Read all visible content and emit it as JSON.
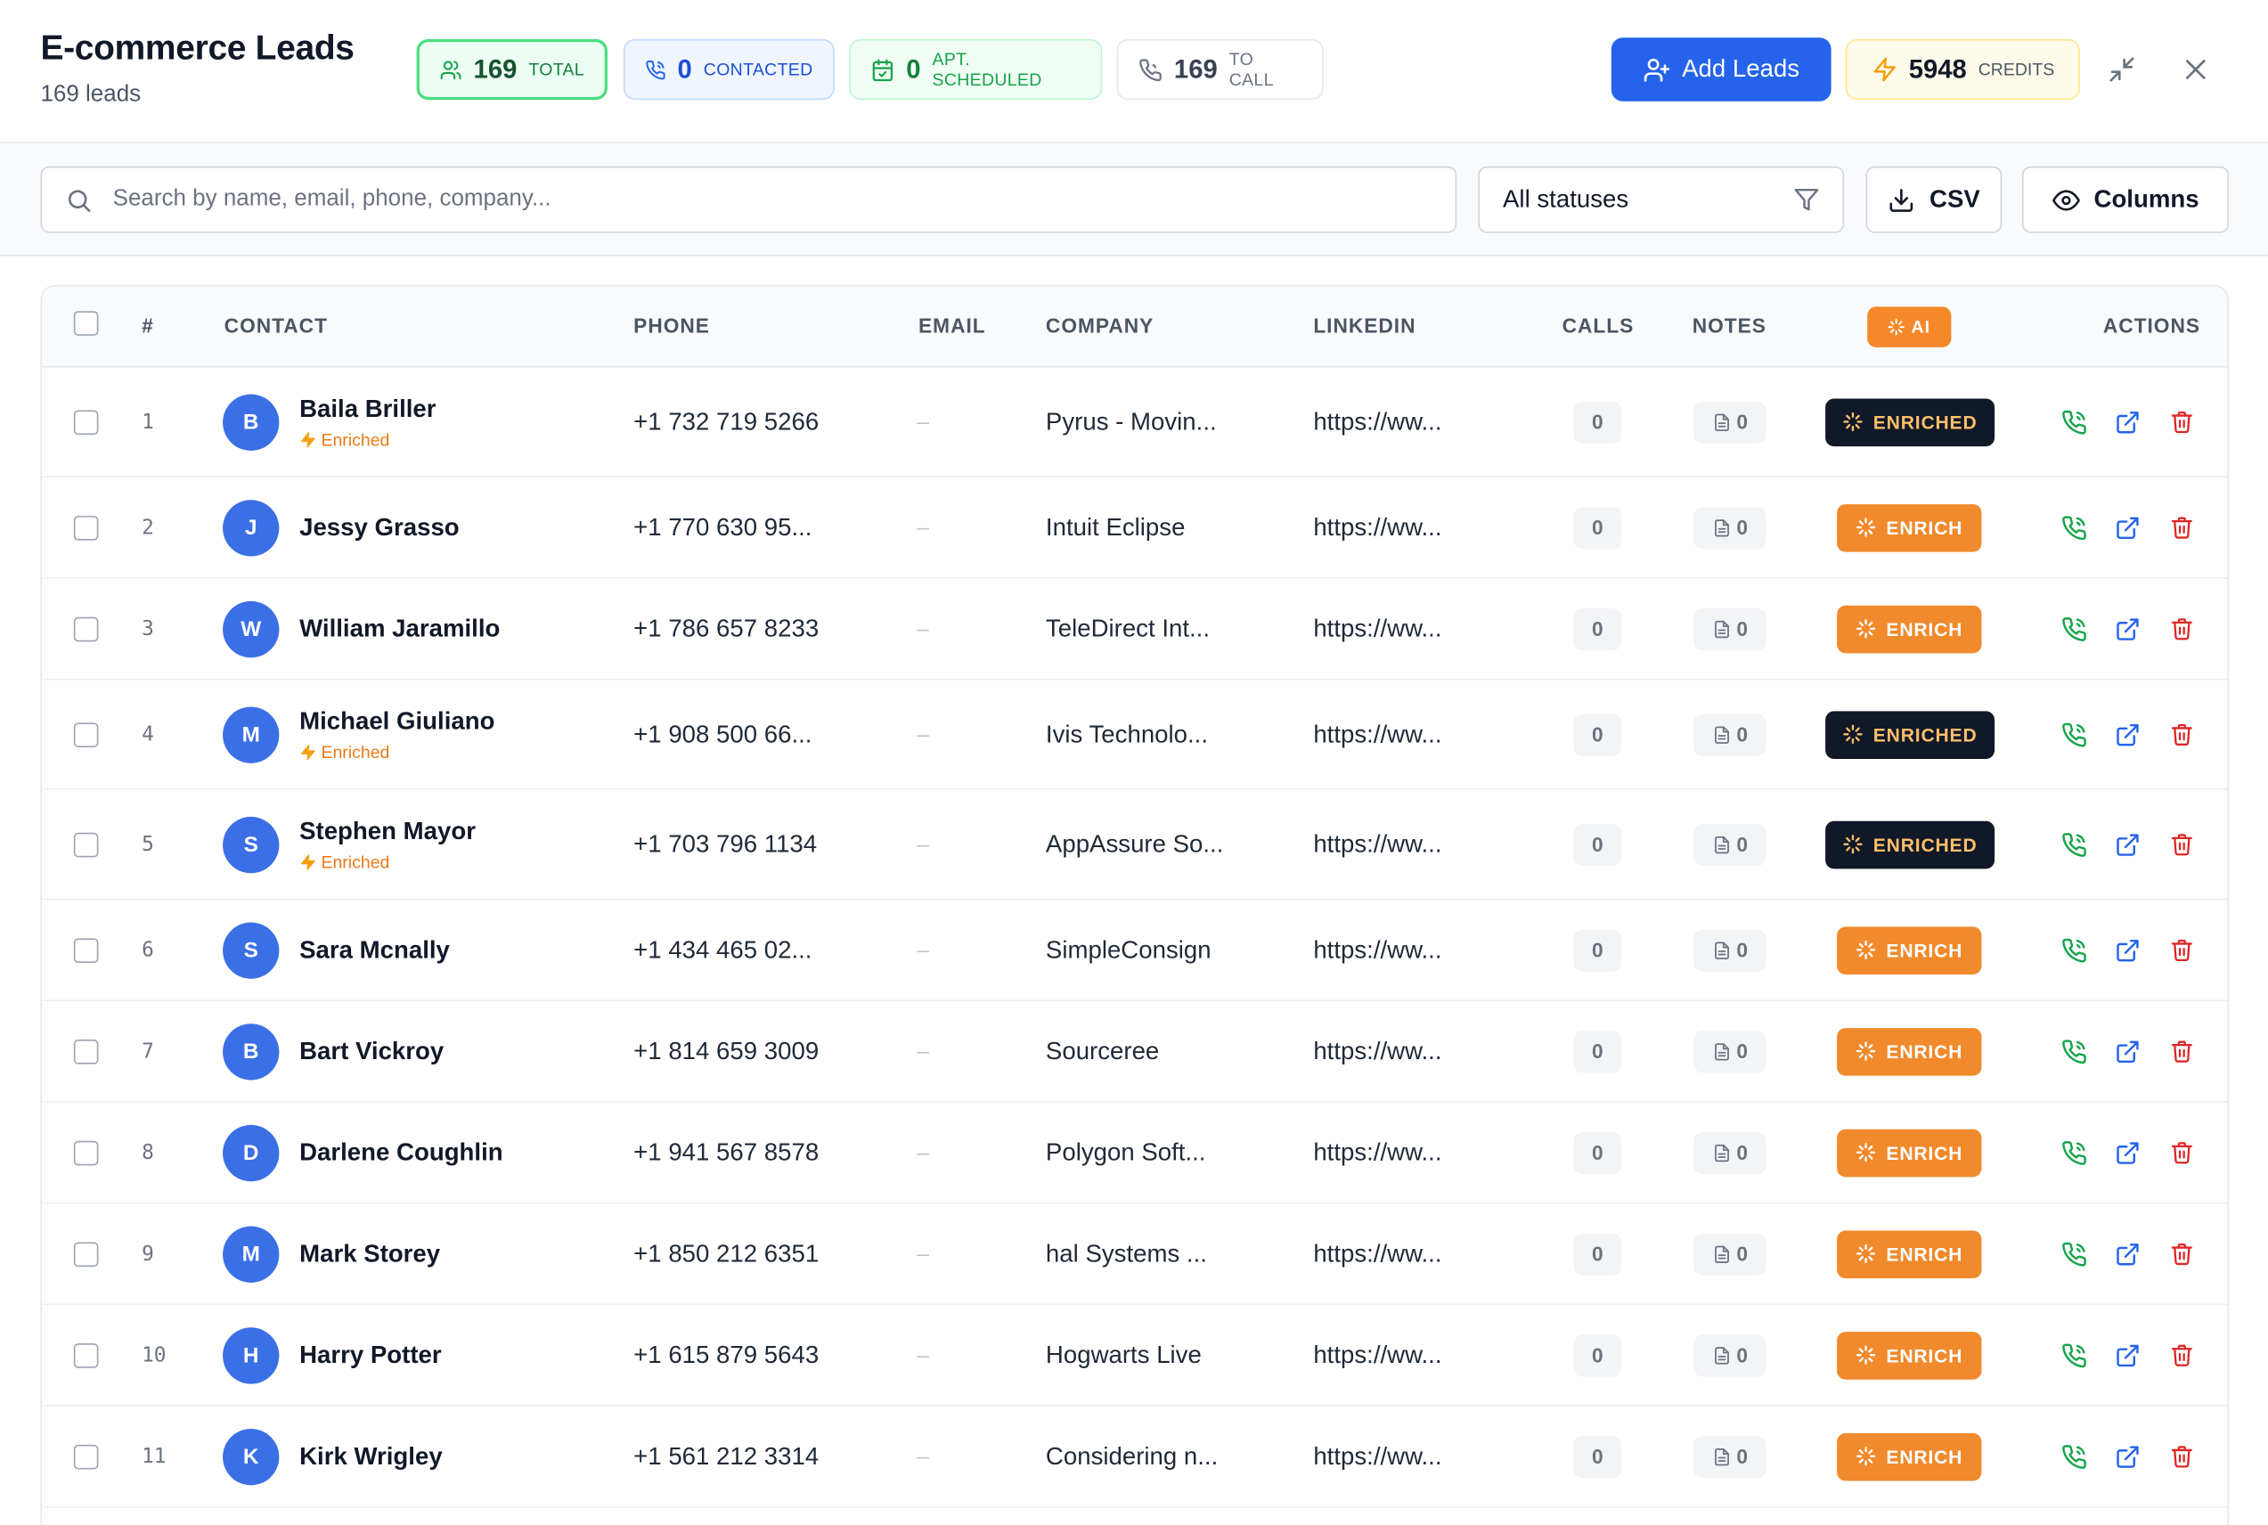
{
  "header": {
    "title": "E-commerce Leads",
    "subtitle": "169 leads",
    "stats": {
      "total": {
        "value": "169",
        "label": "TOTAL"
      },
      "contacted": {
        "value": "0",
        "label": "CONTACTED"
      },
      "apt": {
        "value": "0",
        "label": "APT. SCHEDULED"
      },
      "to_call": {
        "value": "169",
        "label": "TO CALL"
      }
    },
    "add_leads_label": "Add Leads",
    "credits": {
      "value": "5948",
      "label": "CREDITS"
    }
  },
  "toolbar": {
    "search_placeholder": "Search by name, email, phone, company...",
    "status_filter": "All statuses",
    "csv_label": "CSV",
    "columns_label": "Columns"
  },
  "table": {
    "headers": {
      "index": "#",
      "contact": "CONTACT",
      "phone": "PHONE",
      "email": "EMAIL",
      "company": "COMPANY",
      "linkedin": "LINKEDIN",
      "calls": "CALLS",
      "notes": "NOTES",
      "ai": "AI",
      "actions": "ACTIONS"
    },
    "rows": [
      {
        "index": "1",
        "initial": "B",
        "name": "Baila Briller",
        "tag": "Enriched",
        "phone": "+1 732 719 5266",
        "email": "–",
        "company": "Pyrus - Movin...",
        "linkedin": "https://ww...",
        "calls": "0",
        "notes": "0",
        "ai": "ENRICHED"
      },
      {
        "index": "2",
        "initial": "J",
        "name": "Jessy Grasso",
        "tag": "",
        "phone": "+1 770 630 95...",
        "email": "–",
        "company": "Intuit Eclipse",
        "linkedin": "https://ww...",
        "calls": "0",
        "notes": "0",
        "ai": "ENRICH"
      },
      {
        "index": "3",
        "initial": "W",
        "name": "William Jaramillo",
        "tag": "",
        "phone": "+1 786 657 8233",
        "email": "–",
        "company": "TeleDirect Int...",
        "linkedin": "https://ww...",
        "calls": "0",
        "notes": "0",
        "ai": "ENRICH"
      },
      {
        "index": "4",
        "initial": "M",
        "name": "Michael Giuliano",
        "tag": "Enriched",
        "phone": "+1 908 500 66...",
        "email": "–",
        "company": "Ivis Technolo...",
        "linkedin": "https://ww...",
        "calls": "0",
        "notes": "0",
        "ai": "ENRICHED"
      },
      {
        "index": "5",
        "initial": "S",
        "name": "Stephen Mayor",
        "tag": "Enriched",
        "phone": "+1 703 796 1134",
        "email": "–",
        "company": "AppAssure So...",
        "linkedin": "https://ww...",
        "calls": "0",
        "notes": "0",
        "ai": "ENRICHED"
      },
      {
        "index": "6",
        "initial": "S",
        "name": "Sara Mcnally",
        "tag": "",
        "phone": "+1 434 465 02...",
        "email": "–",
        "company": "SimpleConsign",
        "linkedin": "https://ww...",
        "calls": "0",
        "notes": "0",
        "ai": "ENRICH"
      },
      {
        "index": "7",
        "initial": "B",
        "name": "Bart Vickroy",
        "tag": "",
        "phone": "+1 814 659 3009",
        "email": "–",
        "company": "Sourceree",
        "linkedin": "https://ww...",
        "calls": "0",
        "notes": "0",
        "ai": "ENRICH"
      },
      {
        "index": "8",
        "initial": "D",
        "name": "Darlene Coughlin",
        "tag": "",
        "phone": "+1 941 567 8578",
        "email": "–",
        "company": "Polygon Soft...",
        "linkedin": "https://ww...",
        "calls": "0",
        "notes": "0",
        "ai": "ENRICH"
      },
      {
        "index": "9",
        "initial": "M",
        "name": "Mark Storey",
        "tag": "",
        "phone": "+1 850 212 6351",
        "email": "–",
        "company": "hal Systems ...",
        "linkedin": "https://ww...",
        "calls": "0",
        "notes": "0",
        "ai": "ENRICH"
      },
      {
        "index": "10",
        "initial": "H",
        "name": "Harry Potter",
        "tag": "",
        "phone": "+1 615 879 5643",
        "email": "–",
        "company": "Hogwarts Live",
        "linkedin": "https://ww...",
        "calls": "0",
        "notes": "0",
        "ai": "ENRICH"
      },
      {
        "index": "11",
        "initial": "K",
        "name": "Kirk Wrigley",
        "tag": "",
        "phone": "+1 561 212 3314",
        "email": "–",
        "company": "Considering n...",
        "linkedin": "https://ww...",
        "calls": "0",
        "notes": "0",
        "ai": "ENRICH"
      }
    ]
  },
  "colors": {
    "primary": "#2563eb",
    "accent_orange": "#f08a2c",
    "enriched_dark": "#111827",
    "call_green": "#16a34a",
    "delete_red": "#dc2626"
  }
}
